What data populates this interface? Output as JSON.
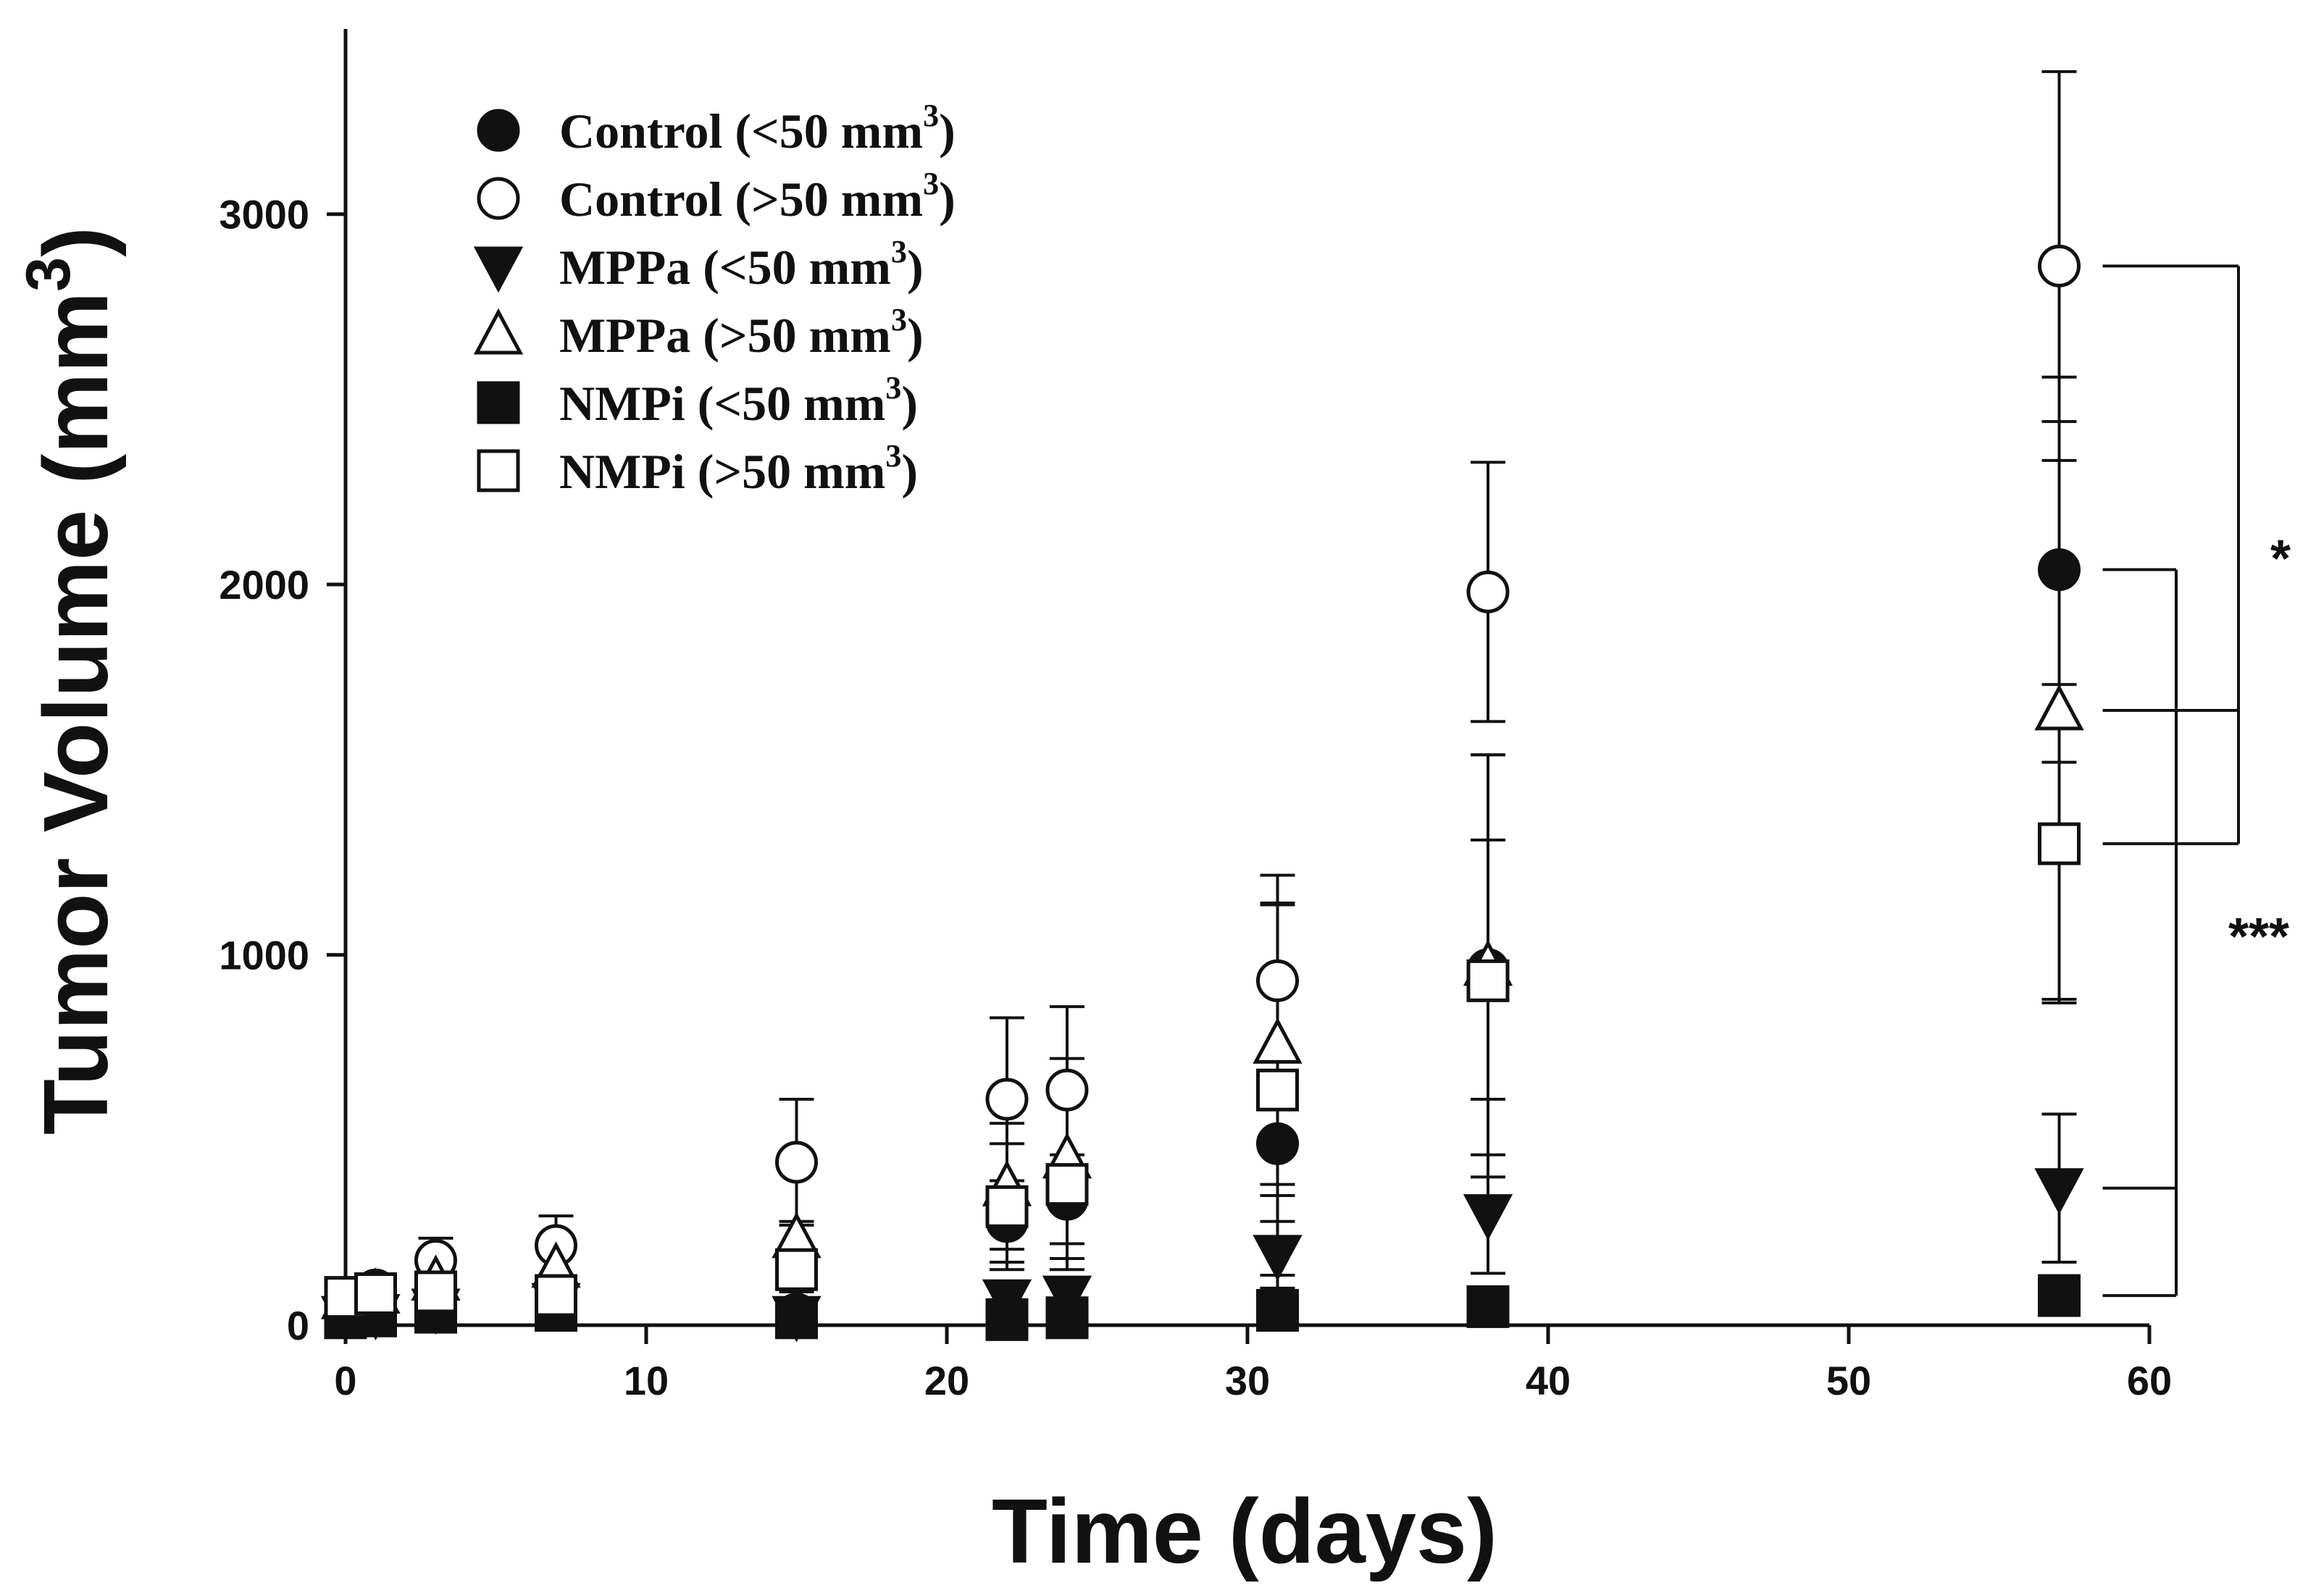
{
  "chart_data": {
    "type": "scatter",
    "title": "",
    "xlabel": "Time (days)",
    "ylabel_main": "Tumor Volume (mm",
    "ylabel_sup": "3",
    "ylabel_close": ")",
    "xlim": [
      0,
      60
    ],
    "ylim": [
      0,
      3500
    ],
    "xticks": [
      0,
      10,
      20,
      30,
      40,
      50,
      60
    ],
    "yticks": [
      0,
      1000,
      2000,
      3000
    ],
    "grid": false,
    "legend_position": "top-left",
    "series": [
      {
        "name_main": "Control (<50 mm",
        "name_sup": "3",
        "name_close": ")",
        "marker": "circle",
        "filled": true,
        "x": [
          0,
          1,
          3,
          7,
          15,
          22,
          24,
          31,
          38,
          57
        ],
        "y": [
          30,
          40,
          60,
          90,
          30,
          280,
          340,
          490,
          960,
          2040
        ],
        "err": [
          10,
          15,
          25,
          35,
          20,
          110,
          120,
          140,
          350,
          520
        ]
      },
      {
        "name_main": "Control (>50 mm",
        "name_sup": "3",
        "name_close": ")",
        "marker": "circle",
        "filled": false,
        "x": [
          0,
          1,
          3,
          7,
          15,
          22,
          24,
          31,
          38,
          57
        ],
        "y": [
          75,
          95,
          175,
          215,
          440,
          610,
          635,
          930,
          1980,
          2860
        ],
        "err": [
          15,
          20,
          60,
          80,
          170,
          220,
          225,
          285,
          350,
          525
        ]
      },
      {
        "name_main": "MPPa (<50 mm",
        "name_sup": "3",
        "name_close": ")",
        "marker": "triangle-down",
        "filled": true,
        "x": [
          0,
          1,
          3,
          7,
          15,
          22,
          24,
          31,
          38,
          57
        ],
        "y": [
          25,
          30,
          45,
          60,
          25,
          70,
          80,
          190,
          300,
          370
        ],
        "err": [
          8,
          10,
          15,
          20,
          12,
          40,
          45,
          90,
          160,
          200
        ]
      },
      {
        "name_main": "MPPa (>50 mm",
        "name_sup": "3",
        "name_close": ")",
        "marker": "triangle-up",
        "filled": false,
        "x": [
          0,
          1,
          3,
          7,
          15,
          22,
          24,
          31,
          38,
          57
        ],
        "y": [
          70,
          85,
          120,
          155,
          235,
          375,
          450,
          760,
          970,
          1660
        ],
        "err": [
          12,
          15,
          40,
          60,
          45,
          170,
          270,
          380,
          570,
          780
        ]
      },
      {
        "name_main": "NMPi (<50 mm",
        "name_sup": "3",
        "name_close": ")",
        "marker": "square",
        "filled": true,
        "x": [
          0,
          1,
          3,
          7,
          15,
          22,
          24,
          31,
          38,
          57
        ],
        "y": [
          20,
          25,
          35,
          40,
          20,
          15,
          20,
          40,
          50,
          80
        ],
        "err": [
          5,
          8,
          10,
          12,
          8,
          5,
          5,
          12,
          15,
          20
        ]
      },
      {
        "name_main": "NMPi (>50 mm",
        "name_sup": "3",
        "name_close": ")",
        "marker": "square",
        "filled": false,
        "x": [
          0,
          1,
          3,
          7,
          15,
          22,
          24,
          31,
          38,
          57
        ],
        "y": [
          75,
          85,
          90,
          80,
          150,
          320,
          380,
          635,
          930,
          1300
        ],
        "err": [
          10,
          15,
          20,
          25,
          60,
          170,
          230,
          500,
          610,
          430
        ]
      }
    ],
    "annotations": [
      {
        "label": "*",
        "bracket_group": [
          {
            "x": 57,
            "y": 2860
          },
          {
            "x": 57,
            "y": 1660
          },
          {
            "x": 57,
            "y": 1300
          }
        ]
      },
      {
        "label": "***",
        "bracket_group": [
          {
            "x": 57,
            "y": 2040
          },
          {
            "x": 57,
            "y": 370
          },
          {
            "x": 57,
            "y": 80
          }
        ]
      }
    ]
  }
}
